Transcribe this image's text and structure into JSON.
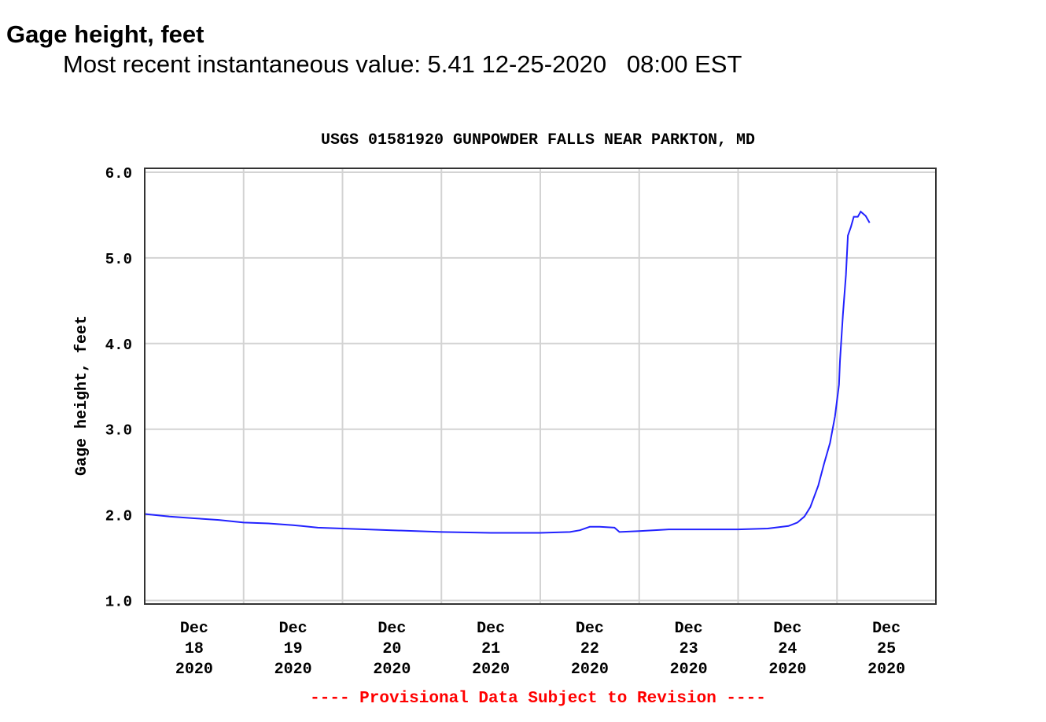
{
  "header": {
    "title": "Gage height, feet",
    "subtitle": "Most recent instantaneous value: 5.41 12-25-2020   08:00 EST"
  },
  "chart_data": {
    "type": "line",
    "title": "USGS 01581920 GUNPOWDER FALLS NEAR PARKTON, MD",
    "xlabel": "",
    "ylabel": "Gage height, feet",
    "x_unit": "days since Dec 18 2020 00:00 EST",
    "xlim": [
      0,
      8
    ],
    "ylim": [
      1.0,
      6.0
    ],
    "grid": true,
    "yticks": [
      "1.0",
      "2.0",
      "3.0",
      "4.0",
      "5.0",
      "6.0"
    ],
    "ytick_values": [
      1,
      2,
      3,
      4,
      5,
      6
    ],
    "xticks": [
      {
        "month": "Dec",
        "day": "18",
        "year": "2020"
      },
      {
        "month": "Dec",
        "day": "19",
        "year": "2020"
      },
      {
        "month": "Dec",
        "day": "20",
        "year": "2020"
      },
      {
        "month": "Dec",
        "day": "21",
        "year": "2020"
      },
      {
        "month": "Dec",
        "day": "22",
        "year": "2020"
      },
      {
        "month": "Dec",
        "day": "23",
        "year": "2020"
      },
      {
        "month": "Dec",
        "day": "24",
        "year": "2020"
      },
      {
        "month": "Dec",
        "day": "25",
        "year": "2020"
      }
    ],
    "series": [
      {
        "name": "Gage height",
        "color": "#2222ff",
        "x": [
          0,
          0.25,
          0.5,
          0.75,
          1.0,
          1.25,
          1.5,
          1.75,
          2.0,
          2.5,
          3.0,
          3.5,
          4.0,
          4.3,
          4.4,
          4.5,
          4.6,
          4.75,
          4.8,
          5.0,
          5.3,
          6.0,
          6.3,
          6.51,
          6.6,
          6.67,
          6.73,
          6.81,
          6.87,
          6.93,
          6.98,
          7.02,
          7.03,
          7.06,
          7.09,
          7.11,
          7.14,
          7.17,
          7.21,
          7.24,
          7.29,
          7.33
        ],
        "y": [
          2.01,
          1.98,
          1.96,
          1.94,
          1.91,
          1.9,
          1.88,
          1.85,
          1.84,
          1.82,
          1.8,
          1.79,
          1.79,
          1.8,
          1.82,
          1.86,
          1.86,
          1.85,
          1.8,
          1.81,
          1.83,
          1.83,
          1.84,
          1.87,
          1.91,
          1.98,
          2.09,
          2.34,
          2.6,
          2.84,
          3.15,
          3.52,
          3.79,
          4.34,
          4.8,
          5.26,
          5.36,
          5.48,
          5.48,
          5.54,
          5.49,
          5.41
        ]
      }
    ],
    "footer_note": "---- Provisional Data Subject to Revision ----",
    "footer_color": "#ff0000"
  }
}
